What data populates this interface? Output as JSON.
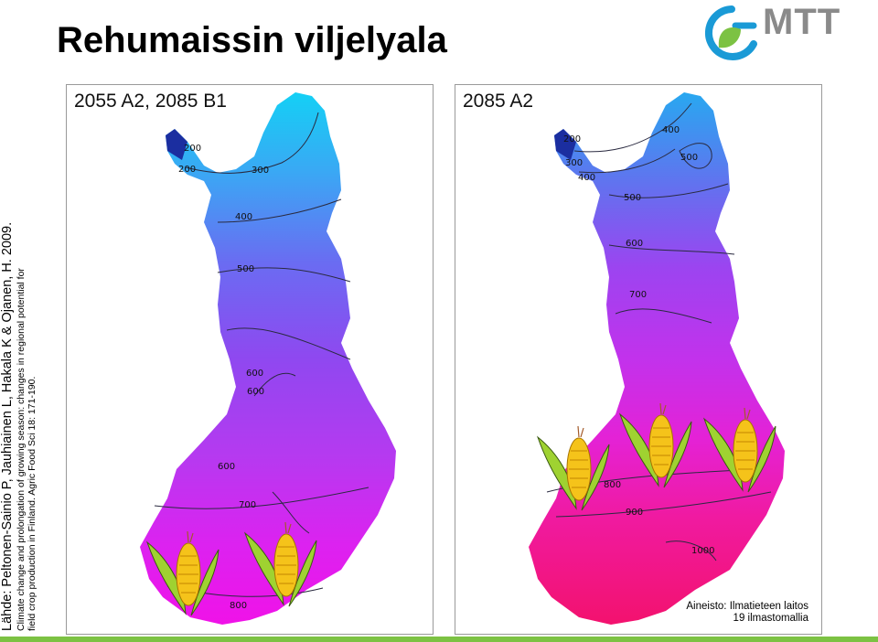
{
  "title": "Rehumaissin viljelyala",
  "logo": {
    "text": "MTT",
    "icon": "mtt-leaf-logo-icon",
    "colors": {
      "blue": "#1a9ad6",
      "green": "#7cc243",
      "grey": "#8a8a8a"
    }
  },
  "source": {
    "line1": "Lähde: Peltonen-Sainio P, Jauhiainen L, Hakala K & Ojanen, H. 2009.",
    "line2": "Climate change and prolongation of growing season: changes in regional potential for",
    "line3": "field  crop production in Finland. Agric Food Sci 18: 171-190."
  },
  "panels": [
    {
      "label": "2055 A2, 2085 B1",
      "contour_labels": [
        "200",
        "200",
        "300",
        "400",
        "500",
        "600",
        "600",
        "600",
        "700",
        "800"
      ],
      "corn_icons": 2
    },
    {
      "label": "2085 A2",
      "contour_labels": [
        "200",
        "300",
        "400",
        "400",
        "500",
        "500",
        "600",
        "700",
        "800",
        "900",
        "1000"
      ],
      "corn_icons": 3
    }
  ],
  "data_source": {
    "line1": "Aineisto: Ilmatieteen laitos",
    "line2": "19 ilmastomallia"
  },
  "colors": {
    "north": "#17c7f2",
    "mid": "#9b3cf0",
    "south_left": "#ee16f2",
    "south_right": "#f3127a",
    "accent_bar": "#7cc243"
  }
}
